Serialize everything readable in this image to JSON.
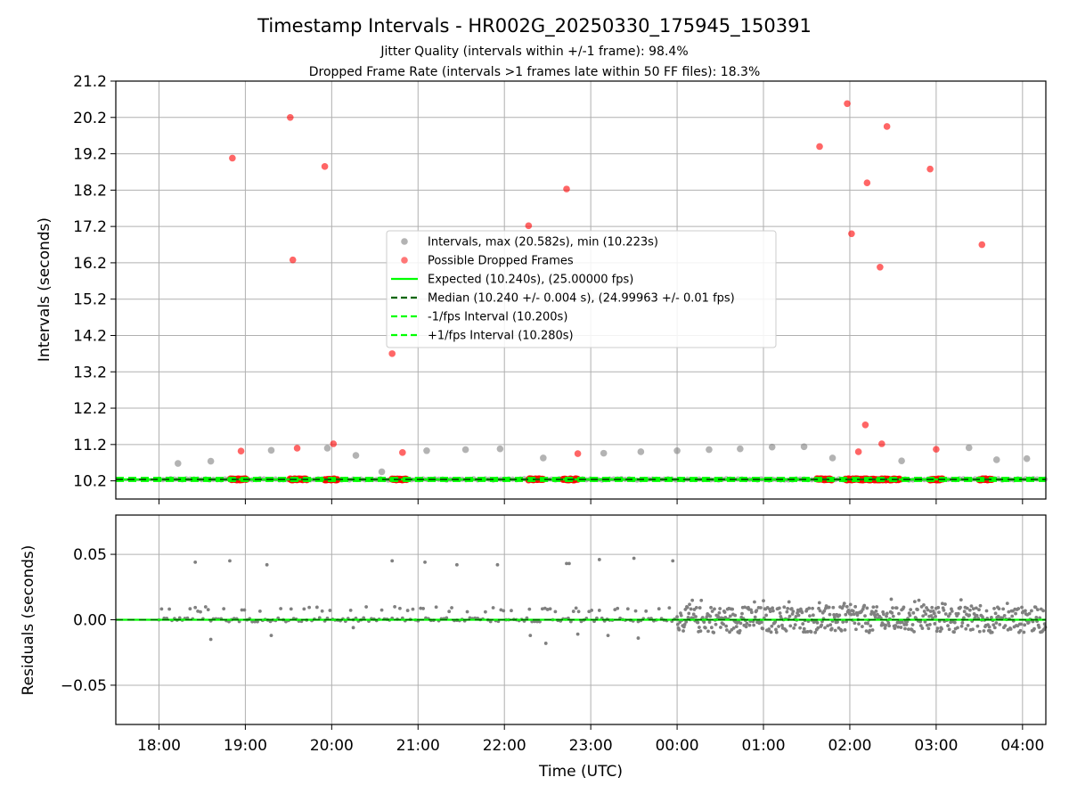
{
  "chart_data": {
    "type": "scatter",
    "title": "Timestamp Intervals - HR002G_20250330_175945_150391",
    "subtitles": [
      "Jitter Quality (intervals within +/-1 frame): 98.4%",
      "Dropped Frame Rate (intervals >1 frames late within 50 FF files): 18.3%"
    ],
    "xlabel": "Time (UTC)",
    "x_tick_labels": [
      "18:00",
      "19:00",
      "20:00",
      "21:00",
      "22:00",
      "23:00",
      "00:00",
      "01:00",
      "02:00",
      "03:00",
      "04:00"
    ],
    "grid": true,
    "legend_position": "center",
    "colors": {
      "intervals": "#808080",
      "dropped": "#ff0000",
      "expected": "#00ff00",
      "median": "#006400",
      "fps_bounds": "#00ff00"
    },
    "top_panel": {
      "ylabel": "Intervals (seconds)",
      "ylim": [
        9.7,
        21.2
      ],
      "y_tick_labels": [
        "10.2",
        "11.2",
        "12.2",
        "13.2",
        "14.2",
        "15.2",
        "16.2",
        "17.2",
        "18.2",
        "19.2",
        "20.2",
        "21.2"
      ],
      "legend": [
        {
          "label": "Intervals, max (20.582s), min (10.223s)",
          "kind": "dot",
          "color": "#a0a0a0"
        },
        {
          "label": "Possible Dropped Frames",
          "kind": "dot",
          "color": "#ff5555"
        },
        {
          "label": "Expected (10.240s), (25.00000 fps)",
          "kind": "solid",
          "color": "#00ff00"
        },
        {
          "label": "Median (10.240 +/- 0.004 s), (24.99963 +/- 0.01 fps)",
          "kind": "dashed",
          "color": "#006400"
        },
        {
          "label": "-1/fps Interval (10.200s)",
          "kind": "dashed",
          "color": "#00ff00"
        },
        {
          "label": "+1/fps Interval (10.280s)",
          "kind": "dashed",
          "color": "#00ff00"
        }
      ],
      "reference_lines": {
        "expected": 10.24,
        "median": 10.24,
        "minus_1fps": 10.2,
        "plus_1fps": 10.28
      },
      "intervals_outliers": {
        "x_hours": [
          18.22,
          18.6,
          19.3,
          19.95,
          20.28,
          20.58,
          21.1,
          21.55,
          21.95,
          22.45,
          23.15,
          23.58,
          24.0,
          24.37,
          24.73,
          25.1,
          25.47,
          25.8,
          26.6,
          27.38,
          27.7,
          28.05
        ],
        "y": [
          10.68,
          10.74,
          11.04,
          11.1,
          10.9,
          10.45,
          11.03,
          11.06,
          11.08,
          10.83,
          10.96,
          11.0,
          11.03,
          11.06,
          11.08,
          11.13,
          11.14,
          10.83,
          10.75,
          11.11,
          10.78,
          10.81
        ]
      },
      "dropped_points": {
        "x_hours": [
          18.85,
          18.95,
          19.52,
          19.55,
          19.6,
          19.92,
          20.02,
          20.7,
          20.82,
          22.28,
          22.72,
          22.85,
          25.65,
          25.97,
          26.02,
          26.1,
          26.18,
          26.2,
          26.35,
          26.37,
          26.43,
          26.93,
          27.0,
          27.53
        ],
        "y": [
          19.08,
          11.02,
          20.2,
          16.28,
          11.1,
          18.85,
          11.22,
          13.7,
          10.98,
          17.22,
          18.23,
          10.95,
          19.4,
          20.58,
          17.0,
          11.0,
          11.74,
          18.4,
          16.08,
          11.22,
          19.95,
          18.78,
          11.07,
          16.7
        ]
      },
      "dropped_clusters_x_hours": [
        [
          18.83,
          19.02
        ],
        [
          19.52,
          19.72
        ],
        [
          19.92,
          20.07
        ],
        [
          20.7,
          20.88
        ],
        [
          22.28,
          22.45
        ],
        [
          22.68,
          22.85
        ],
        [
          25.62,
          25.8
        ],
        [
          25.95,
          26.58
        ],
        [
          26.93,
          27.08
        ],
        [
          27.5,
          27.65
        ]
      ]
    },
    "bottom_panel": {
      "ylabel": "Residuals (seconds)",
      "ylim": [
        -0.08,
        0.08
      ],
      "y_tick_labels": [
        "0.05",
        "0.00",
        "−0.05"
      ],
      "zero_line": 0.0,
      "residual_outliers": {
        "x_hours": [
          18.42,
          18.82,
          19.25,
          20.7,
          21.08,
          21.45,
          21.92,
          22.72,
          22.75,
          23.1,
          23.5,
          23.95,
          18.6,
          19.3,
          20.25,
          22.3,
          22.48,
          22.85,
          23.2,
          23.55
        ],
        "y": [
          0.044,
          0.045,
          0.042,
          0.045,
          0.044,
          0.042,
          0.042,
          0.043,
          0.043,
          0.046,
          0.047,
          0.045,
          -0.015,
          -0.012,
          -0.006,
          -0.012,
          -0.018,
          -0.011,
          -0.012,
          -0.014
        ]
      }
    }
  }
}
